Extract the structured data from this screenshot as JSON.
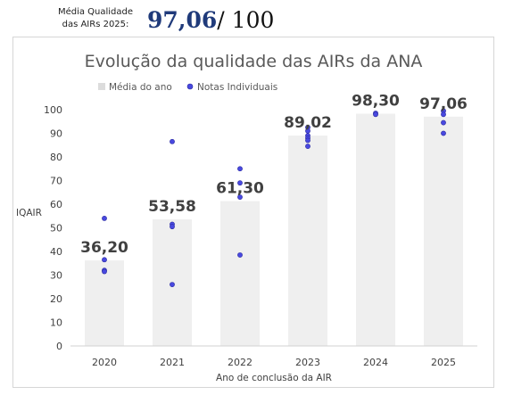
{
  "header": {
    "label": "Média Qualidade\ndas AIRs 2025:",
    "score": "97,06",
    "total": "/ 100"
  },
  "chart_data": {
    "type": "bar",
    "title": "Evolução da qualidade das AIRs da ANA",
    "xlabel": "Ano de conclusão da AIR",
    "ylabel": "IQAIR",
    "ylim": [
      0,
      100
    ],
    "yticks": [
      0,
      10,
      20,
      30,
      40,
      50,
      60,
      70,
      80,
      90,
      100
    ],
    "categories": [
      "2020",
      "2021",
      "2022",
      "2023",
      "2024",
      "2025"
    ],
    "series": [
      {
        "name": "Média do ano",
        "type": "bar",
        "values": [
          36.2,
          53.58,
          61.3,
          89.02,
          98.3,
          97.06
        ],
        "labels": [
          "36,20",
          "53,58",
          "61,30",
          "89,02",
          "98,30",
          "97,06"
        ],
        "color": "#efefef"
      },
      {
        "name": "Notas Individuais",
        "type": "scatter",
        "points": [
          {
            "x": "2020",
            "y": 54
          },
          {
            "x": "2020",
            "y": 36.5
          },
          {
            "x": "2020",
            "y": 32
          },
          {
            "x": "2020",
            "y": 31.5
          },
          {
            "x": "2021",
            "y": 86.5
          },
          {
            "x": "2021",
            "y": 51.5
          },
          {
            "x": "2021",
            "y": 50.5
          },
          {
            "x": "2021",
            "y": 26
          },
          {
            "x": "2022",
            "y": 75
          },
          {
            "x": "2022",
            "y": 69
          },
          {
            "x": "2022",
            "y": 63
          },
          {
            "x": "2022",
            "y": 38.5
          },
          {
            "x": "2023",
            "y": 92.5
          },
          {
            "x": "2023",
            "y": 91
          },
          {
            "x": "2023",
            "y": 89
          },
          {
            "x": "2023",
            "y": 88
          },
          {
            "x": "2023",
            "y": 87
          },
          {
            "x": "2023",
            "y": 84.5
          },
          {
            "x": "2024",
            "y": 98.5
          },
          {
            "x": "2024",
            "y": 98
          },
          {
            "x": "2025",
            "y": 99.5
          },
          {
            "x": "2025",
            "y": 98
          },
          {
            "x": "2025",
            "y": 94.5
          },
          {
            "x": "2025",
            "y": 90
          }
        ],
        "color": "#4949e0"
      }
    ],
    "grid": false,
    "legend": "top-left"
  }
}
